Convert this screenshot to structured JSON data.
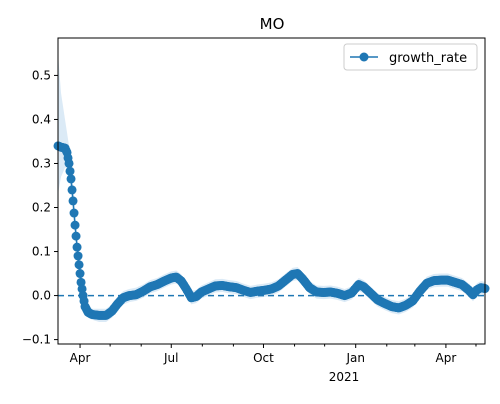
{
  "chart_data": {
    "type": "line",
    "title": "MO",
    "xlabel": "",
    "ylabel": "",
    "x_tick_labels": [
      "Apr",
      "Jul",
      "Oct",
      "Jan",
      "Apr"
    ],
    "x_tick_dates": [
      "2020-04-01",
      "2020-07-01",
      "2020-10-01",
      "2021-01-01",
      "2021-04-01"
    ],
    "x_secondary_label": "2021",
    "xlim": [
      "2020-03-10",
      "2021-05-10"
    ],
    "ylim": [
      -0.11,
      0.585
    ],
    "y_ticks": [
      -0.1,
      0.0,
      0.1,
      0.2,
      0.3,
      0.4,
      0.5
    ],
    "y_tick_labels": [
      "−0.1",
      "0.0",
      "0.1",
      "0.2",
      "0.3",
      "0.4",
      "0.5"
    ],
    "reference_line": {
      "y": 0.0,
      "style": "dashed",
      "color": "#1f77b4"
    },
    "legend_position": "upper right",
    "series": [
      {
        "name": "growth_rate",
        "color": "#1f77b4",
        "band_color": "#cfe3f3",
        "marker": "circle",
        "points": [
          [
            "2020-03-10",
            0.34,
            0.23,
            0.55
          ],
          [
            "2020-03-13",
            0.337,
            0.27,
            0.46
          ],
          [
            "2020-03-17",
            0.335,
            0.29,
            0.4
          ],
          [
            "2020-03-19",
            0.325,
            0.29,
            0.37
          ],
          [
            "2020-03-21",
            0.3,
            0.27,
            0.34
          ],
          [
            "2020-03-23",
            0.265,
            0.24,
            0.3
          ],
          [
            "2020-03-25",
            0.215,
            0.19,
            0.25
          ],
          [
            "2020-03-27",
            0.16,
            0.14,
            0.19
          ],
          [
            "2020-03-29",
            0.11,
            0.09,
            0.14
          ],
          [
            "2020-03-31",
            0.07,
            0.05,
            0.1
          ],
          [
            "2020-04-02",
            0.03,
            0.01,
            0.06
          ],
          [
            "2020-04-04",
            0.0,
            -0.02,
            0.03
          ],
          [
            "2020-04-06",
            -0.025,
            -0.04,
            0.0
          ],
          [
            "2020-04-09",
            -0.038,
            -0.05,
            -0.02
          ],
          [
            "2020-04-13",
            -0.043,
            -0.055,
            -0.03
          ],
          [
            "2020-04-20",
            -0.045,
            -0.06,
            -0.03
          ],
          [
            "2020-04-27",
            -0.045,
            -0.06,
            -0.03
          ],
          [
            "2020-05-03",
            -0.035,
            -0.05,
            -0.02
          ],
          [
            "2020-05-08",
            -0.02,
            -0.035,
            -0.005
          ],
          [
            "2020-05-14",
            -0.005,
            -0.02,
            0.01
          ],
          [
            "2020-05-20",
            0.0,
            -0.015,
            0.015
          ],
          [
            "2020-05-27",
            0.002,
            -0.012,
            0.018
          ],
          [
            "2020-06-03",
            0.01,
            -0.005,
            0.025
          ],
          [
            "2020-06-10",
            0.02,
            0.005,
            0.035
          ],
          [
            "2020-06-17",
            0.025,
            0.01,
            0.04
          ],
          [
            "2020-06-24",
            0.033,
            0.018,
            0.048
          ],
          [
            "2020-07-01",
            0.04,
            0.025,
            0.055
          ],
          [
            "2020-07-06",
            0.042,
            0.027,
            0.057
          ],
          [
            "2020-07-11",
            0.033,
            0.018,
            0.048
          ],
          [
            "2020-07-16",
            0.015,
            0.0,
            0.03
          ],
          [
            "2020-07-21",
            -0.005,
            -0.02,
            0.01
          ],
          [
            "2020-07-26",
            -0.002,
            -0.017,
            0.013
          ],
          [
            "2020-07-31",
            0.008,
            -0.007,
            0.023
          ],
          [
            "2020-08-07",
            0.015,
            0.0,
            0.03
          ],
          [
            "2020-08-14",
            0.022,
            0.007,
            0.037
          ],
          [
            "2020-08-21",
            0.023,
            0.008,
            0.038
          ],
          [
            "2020-08-28",
            0.02,
            0.005,
            0.035
          ],
          [
            "2020-09-04",
            0.018,
            0.003,
            0.033
          ],
          [
            "2020-09-11",
            0.012,
            -0.003,
            0.027
          ],
          [
            "2020-09-18",
            0.007,
            -0.008,
            0.022
          ],
          [
            "2020-09-25",
            0.01,
            -0.005,
            0.025
          ],
          [
            "2020-10-02",
            0.012,
            -0.003,
            0.027
          ],
          [
            "2020-10-09",
            0.015,
            0.0,
            0.03
          ],
          [
            "2020-10-16",
            0.022,
            0.007,
            0.037
          ],
          [
            "2020-10-23",
            0.035,
            0.02,
            0.05
          ],
          [
            "2020-10-30",
            0.048,
            0.033,
            0.063
          ],
          [
            "2020-11-04",
            0.05,
            0.035,
            0.065
          ],
          [
            "2020-11-09",
            0.038,
            0.023,
            0.053
          ],
          [
            "2020-11-16",
            0.018,
            0.003,
            0.033
          ],
          [
            "2020-11-23",
            0.008,
            -0.007,
            0.023
          ],
          [
            "2020-11-30",
            0.007,
            -0.008,
            0.022
          ],
          [
            "2020-12-07",
            0.008,
            -0.007,
            0.023
          ],
          [
            "2020-12-14",
            0.005,
            -0.01,
            0.02
          ],
          [
            "2020-12-21",
            0.0,
            -0.015,
            0.015
          ],
          [
            "2020-12-28",
            0.006,
            -0.009,
            0.021
          ],
          [
            "2021-01-04",
            0.025,
            0.01,
            0.04
          ],
          [
            "2021-01-09",
            0.02,
            0.005,
            0.035
          ],
          [
            "2021-01-16",
            0.005,
            -0.01,
            0.02
          ],
          [
            "2021-01-23",
            -0.01,
            -0.025,
            0.005
          ],
          [
            "2021-01-30",
            -0.018,
            -0.033,
            -0.003
          ],
          [
            "2021-02-06",
            -0.025,
            -0.04,
            -0.01
          ],
          [
            "2021-02-13",
            -0.028,
            -0.043,
            -0.013
          ],
          [
            "2021-02-20",
            -0.022,
            -0.037,
            -0.007
          ],
          [
            "2021-02-27",
            -0.012,
            -0.027,
            0.003
          ],
          [
            "2021-03-06",
            0.01,
            -0.005,
            0.025
          ],
          [
            "2021-03-13",
            0.028,
            0.013,
            0.043
          ],
          [
            "2021-03-20",
            0.034,
            0.019,
            0.049
          ],
          [
            "2021-03-27",
            0.035,
            0.02,
            0.05
          ],
          [
            "2021-04-03",
            0.035,
            0.02,
            0.05
          ],
          [
            "2021-04-10",
            0.03,
            0.015,
            0.045
          ],
          [
            "2021-04-17",
            0.025,
            0.01,
            0.04
          ],
          [
            "2021-04-24",
            0.012,
            -0.003,
            0.027
          ],
          [
            "2021-04-28",
            0.002,
            -0.013,
            0.017
          ],
          [
            "2021-05-02",
            0.013,
            -0.002,
            0.028
          ],
          [
            "2021-05-06",
            0.018,
            0.003,
            0.033
          ],
          [
            "2021-05-10",
            0.016,
            0.001,
            0.031
          ]
        ]
      }
    ]
  }
}
